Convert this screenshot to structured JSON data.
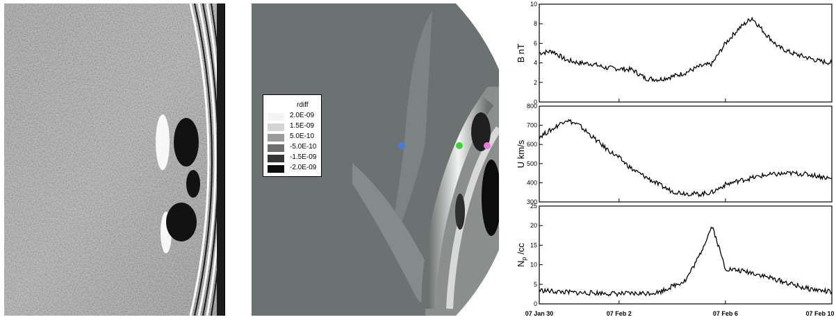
{
  "legend": {
    "title": "rdiff",
    "entries": [
      {
        "label": "2.0E-09",
        "color": "#f4f4f4"
      },
      {
        "label": "1.5E-09",
        "color": "#d4d4d4"
      },
      {
        "label": "5.0E-10",
        "color": "#9a9a9a"
      },
      {
        "label": "-5.0E-10",
        "color": "#6e6e6e"
      },
      {
        "label": "-1.5E-09",
        "color": "#353535"
      },
      {
        "label": "-2.0E-09",
        "color": "#0c0c0c"
      }
    ]
  },
  "markers": [
    {
      "name": "blue-marker",
      "color": "#4a7bd8"
    },
    {
      "name": "green-marker",
      "color": "#3fd23a"
    },
    {
      "name": "pink-marker",
      "color": "#e87be0"
    }
  ],
  "chart_data": [
    {
      "type": "line",
      "ylabel": "B nT",
      "ylim": [
        0,
        10
      ],
      "yticks": [
        "0",
        "2",
        "4",
        "6",
        "8",
        "10"
      ],
      "x": [
        0,
        0.5,
        1,
        1.5,
        2,
        2.5,
        3,
        3.5,
        4,
        4.5,
        5,
        5.5,
        6,
        6.5,
        7,
        7.5,
        8,
        8.5,
        9,
        9.5,
        10,
        10.5,
        11
      ],
      "values": [
        5.0,
        5.2,
        4.3,
        4.0,
        3.9,
        3.5,
        3.4,
        3.3,
        2.4,
        2.3,
        2.6,
        3.0,
        3.6,
        3.9,
        6.0,
        7.5,
        8.6,
        7.0,
        5.6,
        5.0,
        4.6,
        4.2,
        4.0
      ],
      "series": [
        {
          "name": "",
          "values": [
            5.0,
            5.2,
            4.3,
            4.0,
            3.9,
            3.5,
            3.4,
            3.3,
            2.4,
            2.3,
            2.6,
            3.0,
            3.6,
            3.9,
            6.0,
            7.5,
            8.6,
            7.0,
            5.6,
            5.0,
            4.6,
            4.2,
            4.0
          ]
        }
      ]
    },
    {
      "type": "line",
      "ylabel": "U km/s",
      "ylim": [
        300,
        800
      ],
      "yticks": [
        "300",
        "400",
        "500",
        "600",
        "700",
        "800"
      ],
      "x": [
        0,
        0.5,
        1,
        1.5,
        2,
        2.5,
        3,
        3.5,
        4,
        4.5,
        5,
        5.5,
        6,
        6.5,
        7,
        7.5,
        8,
        8.5,
        9,
        9.5,
        10,
        10.5,
        11
      ],
      "values": [
        640,
        680,
        730,
        700,
        640,
        580,
        530,
        470,
        430,
        390,
        355,
        345,
        340,
        350,
        390,
        410,
        425,
        440,
        445,
        450,
        445,
        435,
        420
      ],
      "series": [
        {
          "name": "",
          "values": [
            640,
            680,
            730,
            700,
            640,
            580,
            530,
            470,
            430,
            390,
            355,
            345,
            340,
            350,
            390,
            410,
            425,
            440,
            445,
            450,
            445,
            435,
            420
          ]
        }
      ]
    },
    {
      "type": "line",
      "ylabel": "N",
      "ylabel_sub": "p",
      "ylabel_unit": "/cc",
      "ylim": [
        0,
        25
      ],
      "yticks": [
        "0",
        "5",
        "10",
        "15",
        "20",
        "25"
      ],
      "xticks": [
        "07 Jan 30",
        "07 Feb  2",
        "07 Feb  6",
        "07 Feb 10"
      ],
      "x": [
        0,
        0.5,
        1,
        1.5,
        2,
        2.5,
        3,
        3.5,
        4,
        4.5,
        5,
        5.5,
        6,
        6.5,
        7,
        7.5,
        8,
        8.5,
        9,
        9.5,
        10,
        10.5,
        11
      ],
      "values": [
        3.5,
        3.2,
        3.0,
        2.8,
        2.8,
        2.7,
        2.6,
        2.6,
        2.7,
        3.0,
        4.5,
        6.0,
        12.0,
        20.0,
        9.0,
        8.5,
        8.0,
        7.0,
        6.0,
        5.0,
        4.0,
        3.5,
        3.0
      ],
      "series": [
        {
          "name": "",
          "values": [
            3.5,
            3.2,
            3.0,
            2.8,
            2.8,
            2.7,
            2.6,
            2.6,
            2.7,
            3.0,
            4.5,
            6.0,
            12.0,
            20.0,
            9.0,
            8.5,
            8.0,
            7.0,
            6.0,
            5.0,
            4.0,
            3.5,
            3.0
          ]
        }
      ]
    }
  ]
}
